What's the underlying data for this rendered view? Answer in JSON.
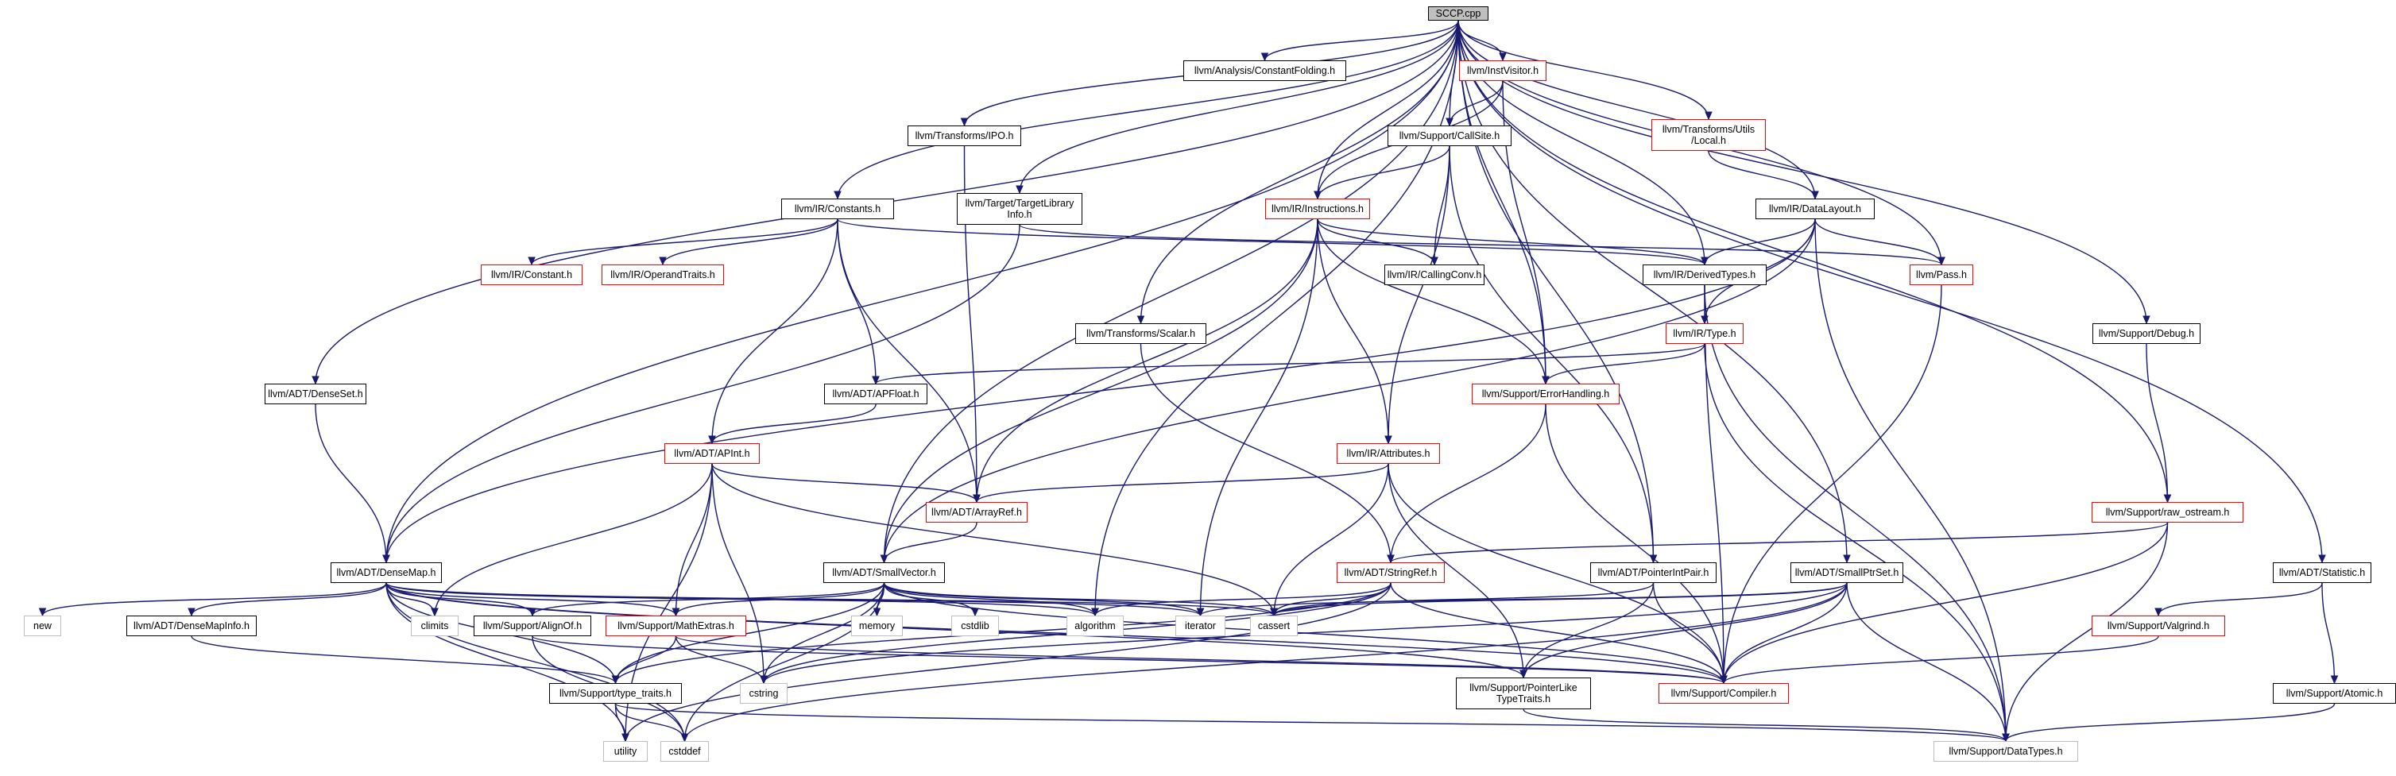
{
  "nodes": {
    "sccp": {
      "label": "SCCP.cpp",
      "style": "root"
    },
    "constantfolding": {
      "label": "llvm/Analysis/ConstantFolding.h",
      "style": "normal"
    },
    "instvisitor": {
      "label": "llvm/InstVisitor.h",
      "style": "red"
    },
    "transforms_utils_local": {
      "label": "llvm/Transforms/Utils\n/Local.h",
      "style": "red"
    },
    "transforms_ipo": {
      "label": "llvm/Transforms/IPO.h",
      "style": "normal"
    },
    "callsite": {
      "label": "llvm/Support/CallSite.h",
      "style": "normal"
    },
    "ir_constants": {
      "label": "llvm/IR/Constants.h",
      "style": "normal"
    },
    "target_library_info": {
      "label": "llvm/Target/TargetLibrary\nInfo.h",
      "style": "normal"
    },
    "ir_instructions": {
      "label": "llvm/IR/Instructions.h",
      "style": "red"
    },
    "ir_datalayout": {
      "label": "llvm/IR/DataLayout.h",
      "style": "normal"
    },
    "ir_constant": {
      "label": "llvm/IR/Constant.h",
      "style": "red"
    },
    "ir_operandtraits": {
      "label": "llvm/IR/OperandTraits.h",
      "style": "red"
    },
    "ir_callingconv": {
      "label": "llvm/IR/CallingConv.h",
      "style": "normal"
    },
    "ir_derivedtypes": {
      "label": "llvm/IR/DerivedTypes.h",
      "style": "normal"
    },
    "pass": {
      "label": "llvm/Pass.h",
      "style": "red"
    },
    "transforms_scalar": {
      "label": "llvm/Transforms/Scalar.h",
      "style": "normal"
    },
    "ir_type": {
      "label": "llvm/IR/Type.h",
      "style": "red"
    },
    "support_debug": {
      "label": "llvm/Support/Debug.h",
      "style": "normal"
    },
    "adt_denseset": {
      "label": "llvm/ADT/DenseSet.h",
      "style": "normal"
    },
    "adt_apfloat": {
      "label": "llvm/ADT/APFloat.h",
      "style": "normal"
    },
    "support_errorhandling": {
      "label": "llvm/Support/ErrorHandling.h",
      "style": "red"
    },
    "adt_apint": {
      "label": "llvm/ADT/APInt.h",
      "style": "red"
    },
    "ir_attributes": {
      "label": "llvm/IR/Attributes.h",
      "style": "red"
    },
    "adt_arrayref": {
      "label": "llvm/ADT/ArrayRef.h",
      "style": "red"
    },
    "support_raw_ostream": {
      "label": "llvm/Support/raw_ostream.h",
      "style": "red"
    },
    "adt_densemap": {
      "label": "llvm/ADT/DenseMap.h",
      "style": "normal"
    },
    "adt_smallvector": {
      "label": "llvm/ADT/SmallVector.h",
      "style": "normal"
    },
    "support_stringref": {
      "label": "llvm/ADT/StringRef.h",
      "style": "red"
    },
    "adt_pointerintpair": {
      "label": "llvm/ADT/PointerIntPair.h",
      "style": "normal"
    },
    "adt_smallptrset": {
      "label": "llvm/ADT/SmallPtrSet.h",
      "style": "normal"
    },
    "adt_statistic": {
      "label": "llvm/ADT/Statistic.h",
      "style": "normal"
    },
    "new": {
      "label": "new",
      "style": "gray"
    },
    "adt_densemapinfo": {
      "label": "llvm/ADT/DenseMapInfo.h",
      "style": "normal"
    },
    "climits": {
      "label": "climits",
      "style": "gray"
    },
    "support_alignof": {
      "label": "llvm/Support/AlignOf.h",
      "style": "normal"
    },
    "support_mathextras": {
      "label": "llvm/Support/MathExtras.h",
      "style": "red"
    },
    "memory": {
      "label": "memory",
      "style": "gray"
    },
    "cstdlib": {
      "label": "cstdlib",
      "style": "gray"
    },
    "algorithm": {
      "label": "algorithm",
      "style": "gray"
    },
    "iterator": {
      "label": "iterator",
      "style": "gray"
    },
    "cassert": {
      "label": "cassert",
      "style": "gray"
    },
    "support_valgrind": {
      "label": "llvm/Support/Valgrind.h",
      "style": "red"
    },
    "support_type_traits": {
      "label": "llvm/Support/type_traits.h",
      "style": "normal"
    },
    "cstring": {
      "label": "cstring",
      "style": "gray"
    },
    "support_pointerliketypetraits": {
      "label": "llvm/Support/PointerLike\nTypeTraits.h",
      "style": "normal"
    },
    "support_compiler": {
      "label": "llvm/Support/Compiler.h",
      "style": "red"
    },
    "support_atomic": {
      "label": "llvm/Support/Atomic.h",
      "style": "normal"
    },
    "utility": {
      "label": "utility",
      "style": "gray"
    },
    "cstddef": {
      "label": "cstddef",
      "style": "gray"
    },
    "support_datatypes": {
      "label": "llvm/Support/DataTypes.h",
      "style": "gray"
    }
  },
  "edges": [
    [
      "sccp",
      "constantfolding"
    ],
    [
      "sccp",
      "instvisitor"
    ],
    [
      "sccp",
      "transforms_utils_local"
    ],
    [
      "sccp",
      "transforms_ipo"
    ],
    [
      "sccp",
      "callsite"
    ],
    [
      "sccp",
      "ir_constants"
    ],
    [
      "sccp",
      "target_library_info"
    ],
    [
      "sccp",
      "ir_instructions"
    ],
    [
      "sccp",
      "ir_datalayout"
    ],
    [
      "sccp",
      "ir_derivedtypes"
    ],
    [
      "sccp",
      "pass"
    ],
    [
      "sccp",
      "transforms_scalar"
    ],
    [
      "sccp",
      "support_debug"
    ],
    [
      "sccp",
      "adt_denseset"
    ],
    [
      "sccp",
      "support_errorhandling"
    ],
    [
      "sccp",
      "support_raw_ostream"
    ],
    [
      "sccp",
      "adt_densemap"
    ],
    [
      "sccp",
      "adt_smallvector"
    ],
    [
      "sccp",
      "adt_pointerintpair"
    ],
    [
      "sccp",
      "adt_smallptrset"
    ],
    [
      "sccp",
      "adt_statistic"
    ],
    [
      "sccp",
      "algorithm"
    ],
    [
      "instvisitor",
      "callsite"
    ],
    [
      "instvisitor",
      "ir_instructions"
    ],
    [
      "instvisitor",
      "support_errorhandling"
    ],
    [
      "transforms_utils_local",
      "ir_datalayout"
    ],
    [
      "transforms_ipo",
      "adt_arrayref"
    ],
    [
      "callsite",
      "ir_instructions"
    ],
    [
      "callsite",
      "ir_callingconv"
    ],
    [
      "callsite",
      "adt_pointerintpair"
    ],
    [
      "callsite",
      "ir_attributes"
    ],
    [
      "ir_constants",
      "ir_constant"
    ],
    [
      "ir_constants",
      "ir_operandtraits"
    ],
    [
      "ir_constants",
      "ir_derivedtypes"
    ],
    [
      "ir_constants",
      "adt_apfloat"
    ],
    [
      "ir_constants",
      "adt_apint"
    ],
    [
      "ir_constants",
      "adt_arrayref"
    ],
    [
      "target_library_info",
      "adt_densemap"
    ],
    [
      "target_library_info",
      "pass"
    ],
    [
      "ir_instructions",
      "ir_callingconv"
    ],
    [
      "ir_instructions",
      "ir_derivedtypes"
    ],
    [
      "ir_instructions",
      "ir_attributes"
    ],
    [
      "ir_instructions",
      "support_errorhandling"
    ],
    [
      "ir_instructions",
      "adt_arrayref"
    ],
    [
      "ir_instructions",
      "adt_smallvector"
    ],
    [
      "ir_instructions",
      "iterator"
    ],
    [
      "ir_datalayout",
      "ir_derivedtypes"
    ],
    [
      "ir_datalayout",
      "pass"
    ],
    [
      "ir_datalayout",
      "ir_type"
    ],
    [
      "ir_datalayout",
      "adt_densemap"
    ],
    [
      "ir_datalayout",
      "adt_smallvector"
    ],
    [
      "ir_datalayout",
      "support_datatypes"
    ],
    [
      "ir_derivedtypes",
      "ir_type"
    ],
    [
      "ir_derivedtypes",
      "support_compiler"
    ],
    [
      "ir_derivedtypes",
      "support_datatypes"
    ],
    [
      "pass",
      "support_compiler"
    ],
    [
      "transforms_scalar",
      "support_stringref"
    ],
    [
      "ir_type",
      "adt_apfloat"
    ],
    [
      "ir_type",
      "support_errorhandling"
    ],
    [
      "ir_type",
      "support_datatypes"
    ],
    [
      "support_debug",
      "support_raw_ostream"
    ],
    [
      "adt_denseset",
      "adt_densemap"
    ],
    [
      "adt_apfloat",
      "adt_apint"
    ],
    [
      "support_errorhandling",
      "support_stringref"
    ],
    [
      "support_errorhandling",
      "support_compiler"
    ],
    [
      "adt_apint",
      "adt_arrayref"
    ],
    [
      "adt_apint",
      "support_mathextras"
    ],
    [
      "adt_apint",
      "climits"
    ],
    [
      "adt_apint",
      "cstring"
    ],
    [
      "adt_apint",
      "cassert"
    ],
    [
      "adt_apint",
      "utility"
    ],
    [
      "ir_attributes",
      "adt_arrayref"
    ],
    [
      "ir_attributes",
      "support_pointerliketypetraits"
    ],
    [
      "ir_attributes",
      "cassert"
    ],
    [
      "ir_attributes",
      "support_compiler"
    ],
    [
      "adt_arrayref",
      "adt_smallvector"
    ],
    [
      "support_raw_ostream",
      "support_stringref"
    ],
    [
      "support_raw_ostream",
      "support_compiler"
    ],
    [
      "support_raw_ostream",
      "support_datatypes"
    ],
    [
      "adt_densemap",
      "new"
    ],
    [
      "adt_densemap",
      "adt_densemapinfo"
    ],
    [
      "adt_densemap",
      "climits"
    ],
    [
      "adt_densemap",
      "support_alignof"
    ],
    [
      "adt_densemap",
      "support_mathextras"
    ],
    [
      "adt_densemap",
      "algorithm"
    ],
    [
      "adt_densemap",
      "iterator"
    ],
    [
      "adt_densemap",
      "cassert"
    ],
    [
      "adt_densemap",
      "support_type_traits"
    ],
    [
      "adt_densemap",
      "support_pointerliketypetraits"
    ],
    [
      "adt_densemap",
      "support_compiler"
    ],
    [
      "adt_densemap",
      "utility"
    ],
    [
      "adt_densemap",
      "cstddef"
    ],
    [
      "adt_smallvector",
      "memory"
    ],
    [
      "adt_smallvector",
      "cstdlib"
    ],
    [
      "adt_smallvector",
      "algorithm"
    ],
    [
      "adt_smallvector",
      "iterator"
    ],
    [
      "adt_smallvector",
      "cassert"
    ],
    [
      "adt_smallvector",
      "support_alignof"
    ],
    [
      "adt_smallvector",
      "support_mathextras"
    ],
    [
      "adt_smallvector",
      "support_type_traits"
    ],
    [
      "adt_smallvector",
      "cstring"
    ],
    [
      "adt_smallvector",
      "support_compiler"
    ],
    [
      "adt_smallvector",
      "cstddef"
    ],
    [
      "support_stringref",
      "algorithm"
    ],
    [
      "support_stringref",
      "cassert"
    ],
    [
      "support_stringref",
      "cstring"
    ],
    [
      "support_stringref",
      "support_type_traits"
    ],
    [
      "support_stringref",
      "support_compiler"
    ],
    [
      "support_stringref",
      "utility"
    ],
    [
      "adt_pointerintpair",
      "support_pointerliketypetraits"
    ],
    [
      "adt_pointerintpair",
      "support_compiler"
    ],
    [
      "adt_pointerintpair",
      "cassert"
    ],
    [
      "adt_smallptrset",
      "cassert"
    ],
    [
      "adt_smallptrset",
      "iterator"
    ],
    [
      "adt_smallptrset",
      "support_pointerliketypetraits"
    ],
    [
      "adt_smallptrset",
      "support_compiler"
    ],
    [
      "adt_smallptrset",
      "support_datatypes"
    ],
    [
      "adt_smallptrset",
      "cstring"
    ],
    [
      "adt_smallptrset",
      "cstddef"
    ],
    [
      "adt_statistic",
      "support_valgrind"
    ],
    [
      "adt_statistic",
      "support_atomic"
    ],
    [
      "adt_densemapinfo",
      "support_type_traits"
    ],
    [
      "support_alignof",
      "cstddef"
    ],
    [
      "support_alignof",
      "support_compiler"
    ],
    [
      "support_mathextras",
      "support_type_traits"
    ],
    [
      "support_mathextras",
      "support_compiler"
    ],
    [
      "support_mathextras",
      "cstring"
    ],
    [
      "support_type_traits",
      "utility"
    ],
    [
      "support_type_traits",
      "cstddef"
    ],
    [
      "support_type_traits",
      "support_datatypes"
    ],
    [
      "support_valgrind",
      "support_compiler"
    ],
    [
      "support_pointerliketypetraits",
      "support_datatypes"
    ],
    [
      "support_atomic",
      "support_datatypes"
    ]
  ]
}
